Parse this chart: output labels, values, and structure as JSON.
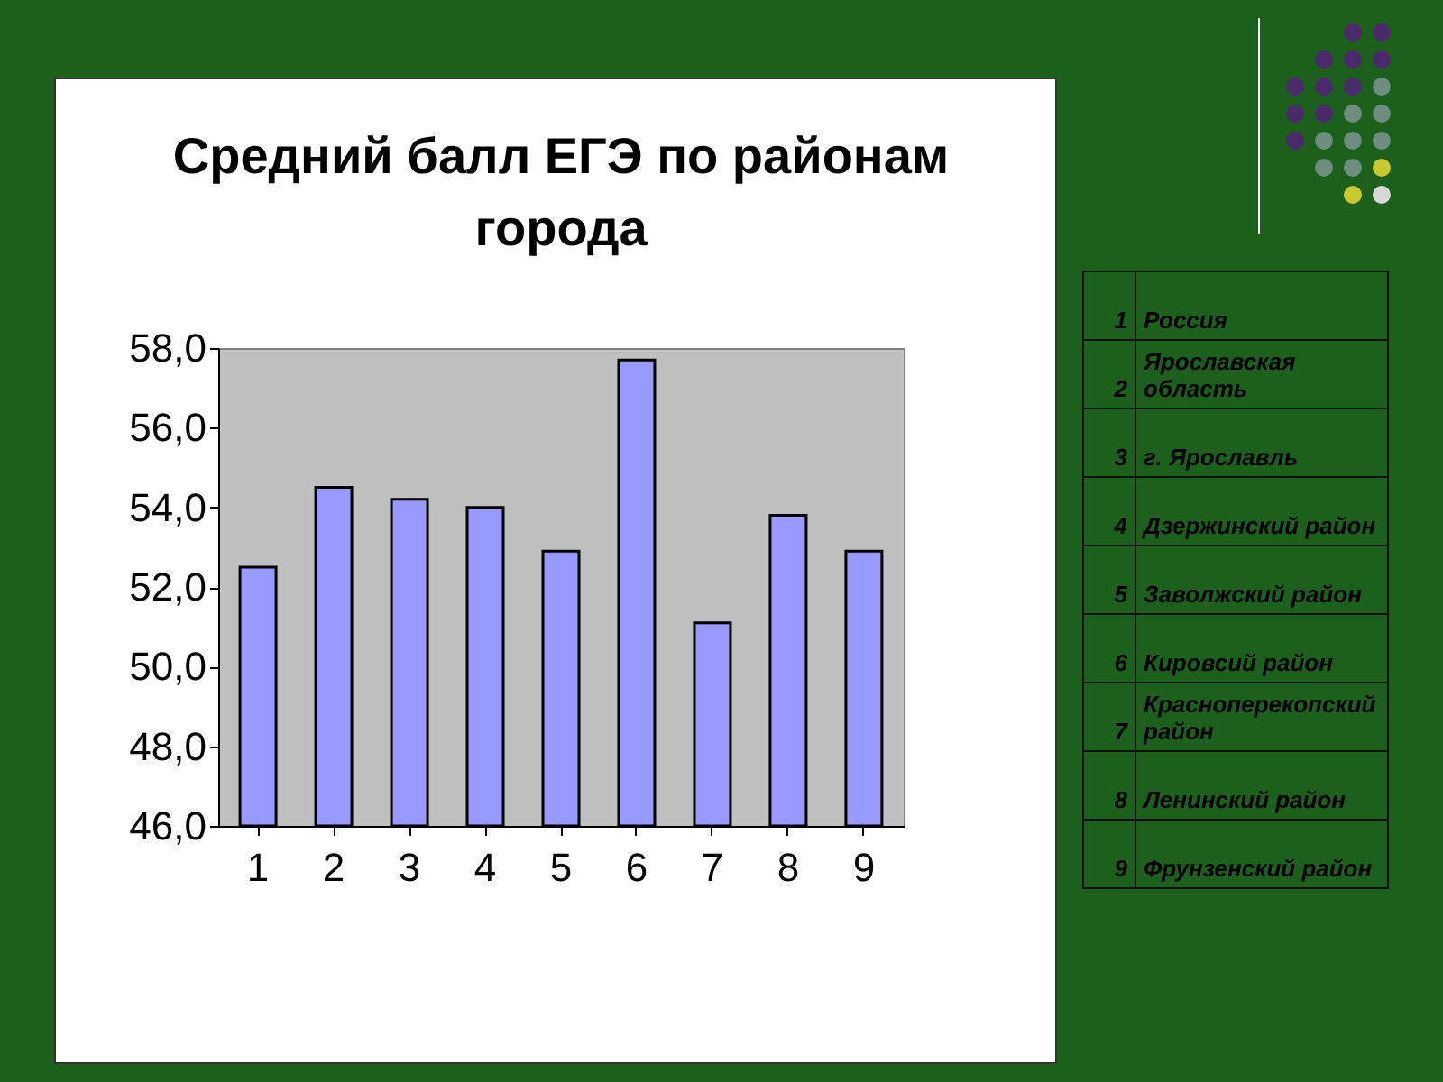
{
  "chart_data": {
    "type": "bar",
    "title": [
      "Средний балл ЕГЭ по районам",
      "города"
    ],
    "categories": [
      "1",
      "2",
      "3",
      "4",
      "5",
      "6",
      "7",
      "8",
      "9"
    ],
    "values": [
      52.5,
      54.5,
      54.2,
      54.0,
      52.9,
      57.7,
      51.1,
      53.8,
      52.9
    ],
    "color": "#9999ff",
    "ylim": [
      46,
      58
    ],
    "yticks": [
      {
        "value": 46,
        "label": "46,0"
      },
      {
        "value": 48,
        "label": "48,0"
      },
      {
        "value": 50,
        "label": "50,0"
      },
      {
        "value": 52,
        "label": "52,0"
      },
      {
        "value": 54,
        "label": "54,0"
      },
      {
        "value": 56,
        "label": "56,0"
      },
      {
        "value": 58,
        "label": "58,0"
      }
    ],
    "annotations": [
      "Россия",
      "Ярославская область",
      "г. Ярославль",
      "Дзержинский район",
      "Заволжский район",
      "Кировсий район",
      "Красноперекопский район",
      "Ленинский район",
      "Фрунзенский район"
    ]
  }
}
